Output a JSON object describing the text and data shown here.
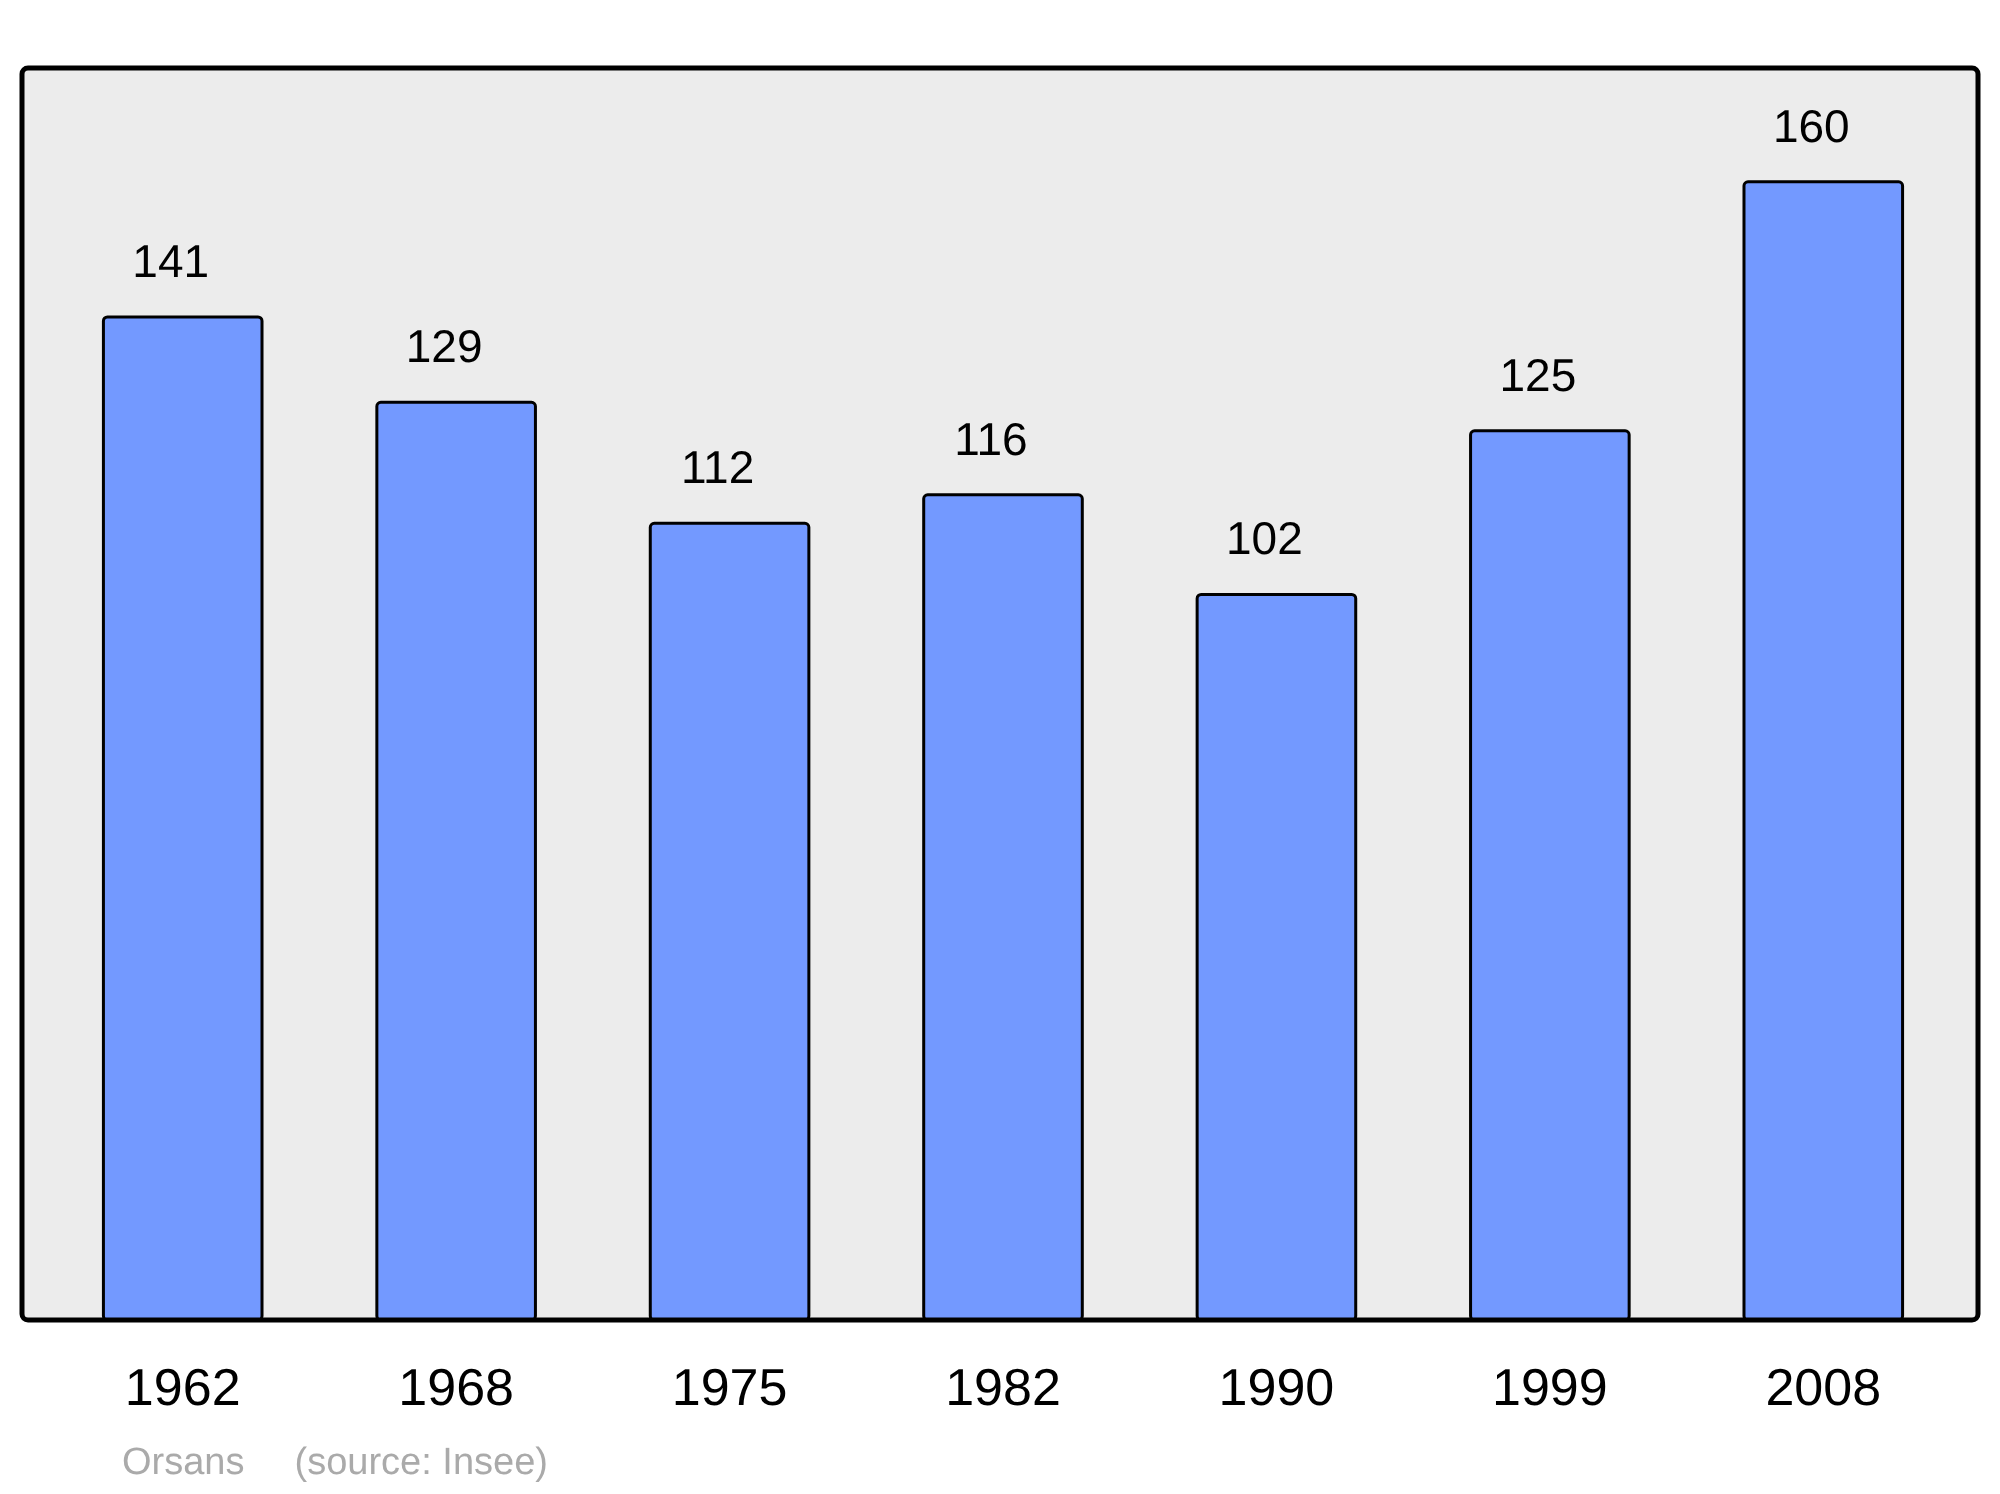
{
  "chart_data": {
    "type": "bar",
    "categories": [
      "1962",
      "1968",
      "1975",
      "1982",
      "1990",
      "1999",
      "2008"
    ],
    "values": [
      141,
      129,
      112,
      116,
      102,
      125,
      160
    ],
    "color": "#7399ff",
    "ylim": [
      0,
      176
    ],
    "tick_labels": "x",
    "data_labels": true,
    "annotations": [
      "Orsans",
      "(source: Insee)"
    ]
  }
}
